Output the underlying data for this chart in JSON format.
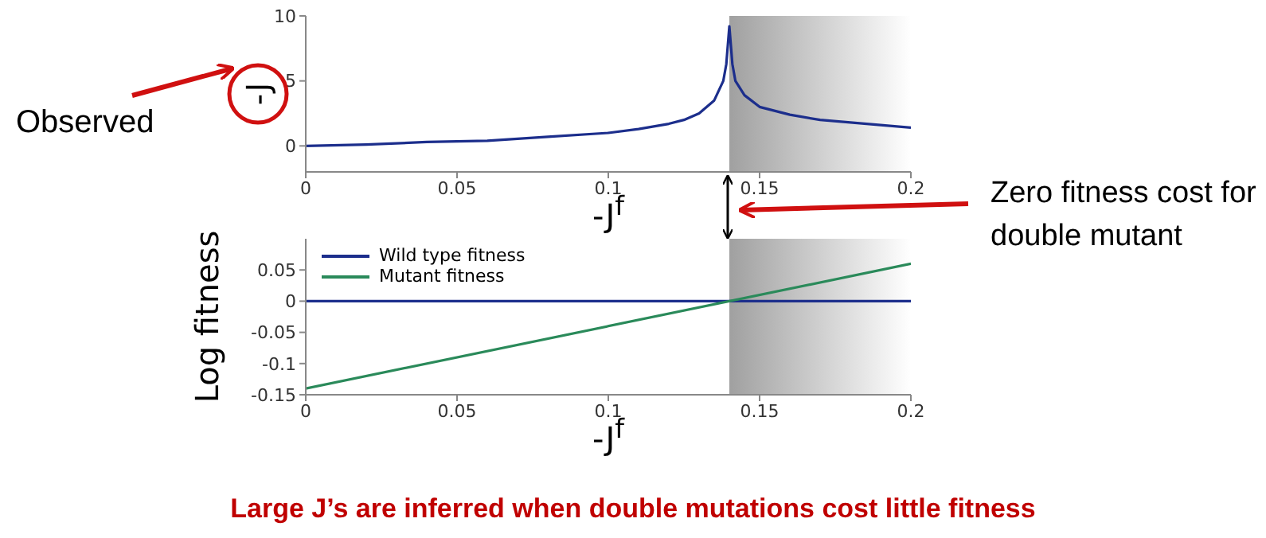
{
  "chart_data": [
    {
      "type": "line",
      "ylabel": "-J",
      "xlabel": "-J$^{f}$",
      "x": [
        0,
        0.02,
        0.04,
        0.06,
        0.08,
        0.1,
        0.11,
        0.12,
        0.125,
        0.13,
        0.135,
        0.138,
        0.139,
        0.14,
        0.141,
        0.142,
        0.145,
        0.15,
        0.16,
        0.17,
        0.18,
        0.19,
        0.2
      ],
      "series": [
        {
          "color": "#1c2e8c",
          "values": [
            0,
            0.1,
            0.3,
            0.4,
            0.7,
            1.0,
            1.3,
            1.7,
            2.0,
            2.5,
            3.5,
            5,
            6.3,
            9.2,
            6.3,
            5,
            3.9,
            3.0,
            2.4,
            2.0,
            1.8,
            1.6,
            1.4
          ]
        }
      ],
      "xlim": [
        0,
        0.2
      ],
      "xticks": [
        0,
        0.05,
        0.1,
        0.15,
        0.2
      ],
      "ylim": [
        -2,
        10
      ],
      "yticks": [
        0,
        5,
        10
      ],
      "bands": [
        {
          "axis": "x",
          "from": 0.14,
          "to": 0.2,
          "color": "#a0a0a0"
        }
      ],
      "annotations": [
        "Observed",
        "Zero fitness cost for double mutant"
      ]
    },
    {
      "type": "line",
      "ylabel": "Log fitness",
      "xlabel": "-J$^{f}$",
      "x": [
        0,
        0.2
      ],
      "series": [
        {
          "name": "Wild type fitness",
          "color": "#1c2e8c",
          "values": [
            0,
            0
          ]
        },
        {
          "name": "Mutant fitness",
          "color": "#2a8a5a",
          "values": [
            -0.14,
            0.06
          ]
        }
      ],
      "xlim": [
        0,
        0.2
      ],
      "xticks": [
        0,
        0.05,
        0.1,
        0.15,
        0.2
      ],
      "ylim": [
        -0.15,
        0.1
      ],
      "yticks": [
        -0.15,
        -0.1,
        -0.05,
        0,
        0.05
      ],
      "bands": [
        {
          "axis": "x",
          "from": 0.14,
          "to": 0.2,
          "color": "#a0a0a0"
        }
      ],
      "legend": "top left",
      "annotations": [
        "Large J’s are inferred when double mutations cost little fitness"
      ]
    }
  ]
}
